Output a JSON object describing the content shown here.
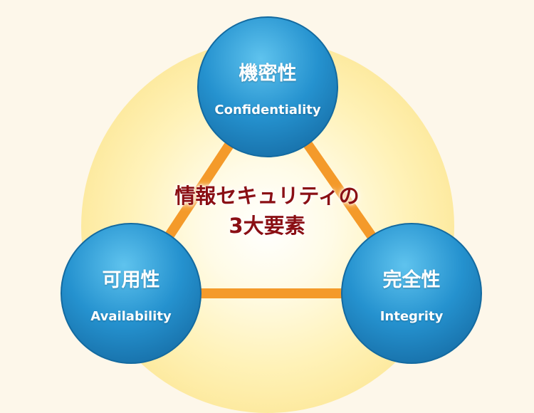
{
  "center": {
    "line1": "情報セキュリティの",
    "line2": "3大要素"
  },
  "nodes": {
    "top": {
      "jp": "機密性",
      "en": "Confidentiality"
    },
    "left": {
      "jp": "可用性",
      "en": "Availability"
    },
    "right": {
      "jp": "完全性",
      "en": "Integrity"
    }
  },
  "colors": {
    "background": "#fdf7ea",
    "glow": "#fde98a",
    "connector": "#f49a2a",
    "circle": "#1f8ac6",
    "center_text": "#8a0f14"
  }
}
